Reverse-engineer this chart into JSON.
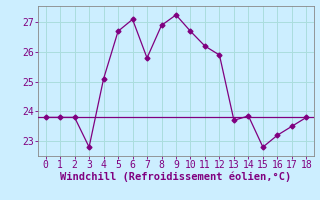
{
  "x": [
    0,
    1,
    2,
    3,
    4,
    5,
    6,
    7,
    8,
    9,
    10,
    11,
    12,
    13,
    14,
    15,
    16,
    17,
    18
  ],
  "y": [
    23.8,
    23.8,
    23.8,
    22.8,
    25.1,
    26.7,
    27.1,
    25.8,
    26.9,
    27.25,
    26.7,
    26.2,
    25.9,
    23.7,
    23.85,
    22.8,
    23.2,
    23.5,
    23.8
  ],
  "line_color": "#800080",
  "marker": "D",
  "marker_size": 2.5,
  "bg_color": "#cceeff",
  "grid_color": "#aadddd",
  "xlabel": "Windchill (Refroidissement éolien,°C)",
  "xlim": [
    -0.5,
    18.5
  ],
  "ylim": [
    22.5,
    27.55
  ],
  "yticks": [
    23,
    24,
    25,
    26,
    27
  ],
  "xticks": [
    0,
    1,
    2,
    3,
    4,
    5,
    6,
    7,
    8,
    9,
    10,
    11,
    12,
    13,
    14,
    15,
    16,
    17,
    18
  ],
  "hline_y": 23.8,
  "label_fontsize": 7.5,
  "tick_fontsize": 7
}
